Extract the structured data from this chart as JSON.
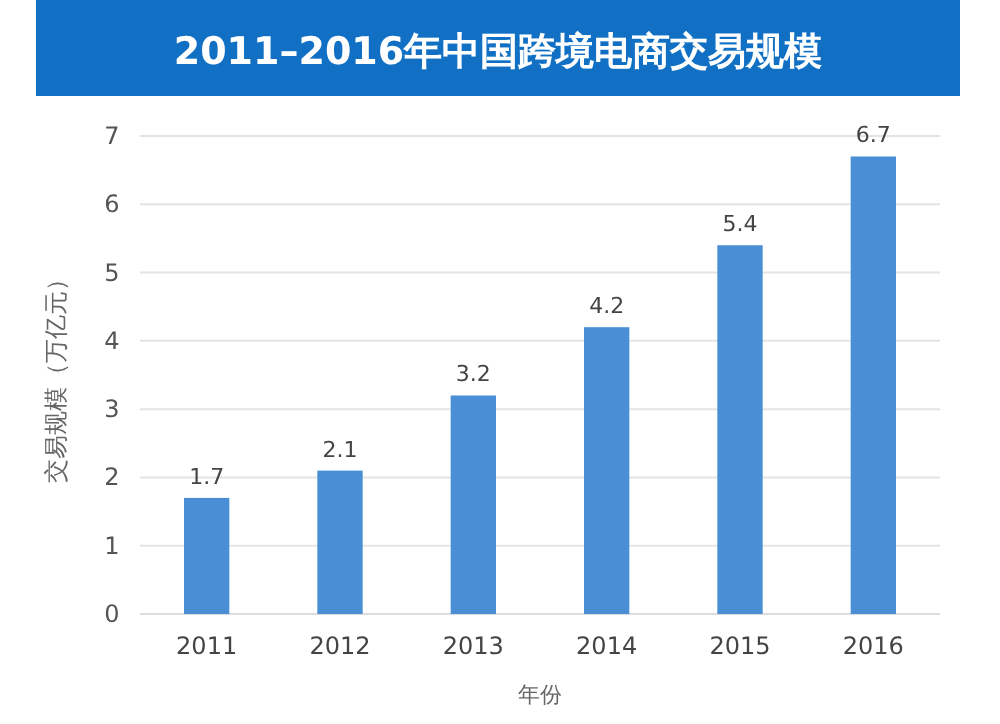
{
  "chart_data": {
    "type": "bar",
    "title": "2011–2016年中国跨境电商交易规模",
    "xlabel": "年份",
    "ylabel": "交易规模（万亿元）",
    "categories": [
      "2011",
      "2012",
      "2013",
      "2014",
      "2015",
      "2016"
    ],
    "values": [
      1.7,
      2.1,
      3.2,
      4.2,
      5.4,
      6.7
    ],
    "color": "#4a8fd6",
    "ylim": [
      0,
      7
    ],
    "yticks": [
      0,
      1,
      2,
      3,
      4,
      5,
      6,
      7
    ],
    "grid": "y",
    "data_labels": true
  }
}
